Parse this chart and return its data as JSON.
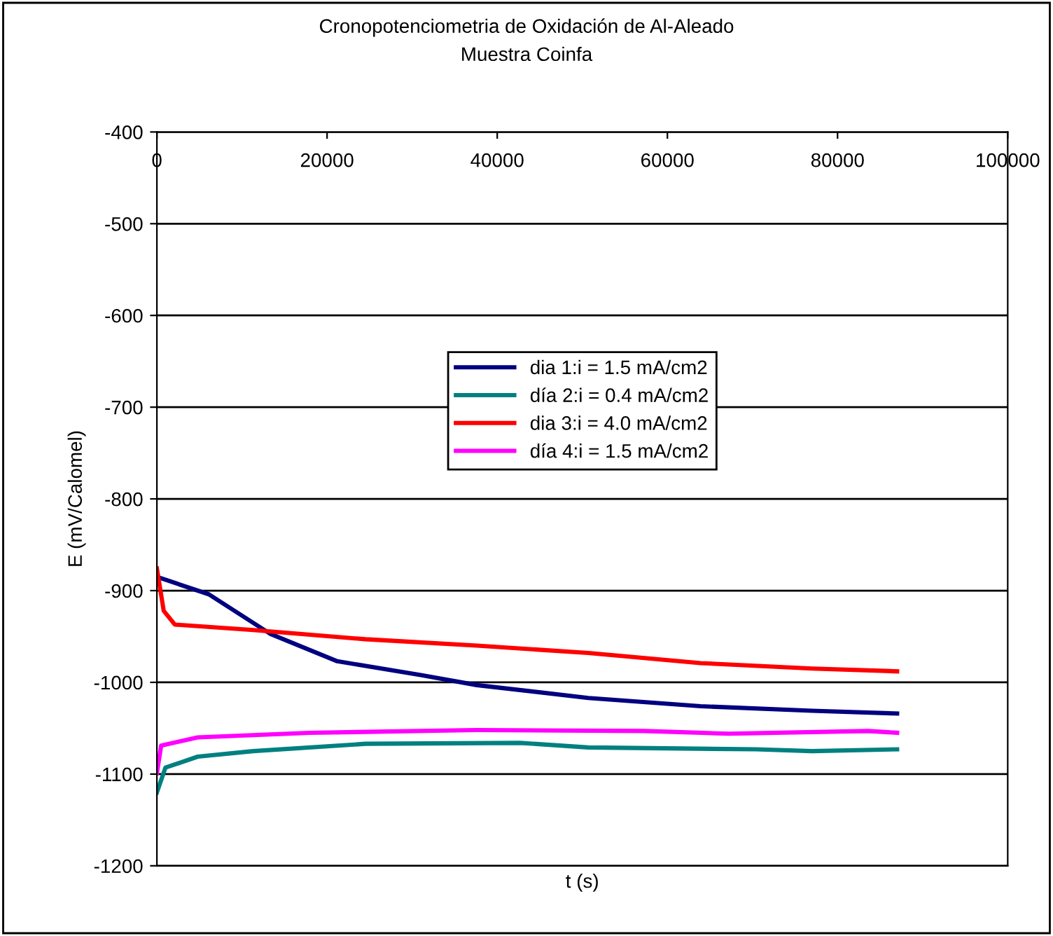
{
  "chart_data": {
    "type": "line",
    "title": "Cronopotenciometria de Oxidación de Al-Aleado",
    "subtitle": "Muestra Coinfa",
    "xlabel": "t (s)",
    "ylabel": "E (mV/Calomel)",
    "xlim": [
      0,
      100000
    ],
    "xticks": [
      0,
      20000,
      40000,
      60000,
      80000,
      100000
    ],
    "ylim": [
      -1200,
      -400
    ],
    "yticks": [
      -1200,
      -1100,
      -1000,
      -900,
      -800,
      -700,
      -600,
      -500,
      -400
    ],
    "grid": "y",
    "legend": "center",
    "marker": "none",
    "line_style": "solid",
    "series": [
      {
        "name": "dia 1:i = 1.5 mA/cm2",
        "color": "#000080",
        "x": [
          0,
          6100,
          13300,
          21200,
          31000,
          37600,
          50700,
          63900,
          77000,
          87000
        ],
        "values": [
          -885,
          -904,
          -947,
          -977,
          -992,
          -1003,
          -1017,
          -1026,
          -1031,
          -1034
        ]
      },
      {
        "name": "día 2:i = 0.4 mA/cm2",
        "color": "#008080",
        "x": [
          0,
          1000,
          4800,
          11300,
          24500,
          42700,
          50700,
          70400,
          77000,
          87000
        ],
        "values": [
          -1120,
          -1093,
          -1081,
          -1075,
          -1067,
          -1066,
          -1071,
          -1073,
          -1075,
          -1073
        ]
      },
      {
        "name": "dia 3:i = 4.0 mA/cm2",
        "color": "#ff0000",
        "x": [
          0,
          800,
          2100,
          11300,
          24500,
          37600,
          50700,
          63900,
          77000,
          87000
        ],
        "values": [
          -876,
          -922,
          -937,
          -943,
          -953,
          -960,
          -968,
          -979,
          -985,
          -988
        ]
      },
      {
        "name": "día 4:i = 1.5 mA/cm2",
        "color": "#ff00ff",
        "x": [
          0,
          500,
          4800,
          17900,
          37600,
          57300,
          67200,
          83600,
          87000
        ],
        "values": [
          -1099,
          -1069,
          -1060,
          -1055,
          -1052,
          -1053,
          -1056,
          -1053,
          -1055
        ]
      }
    ]
  }
}
